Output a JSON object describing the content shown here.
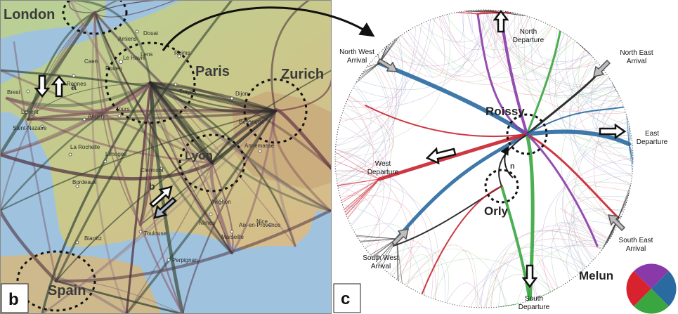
{
  "panel_b": {
    "letter": "b",
    "regions": {
      "london": "London",
      "paris": "Paris",
      "zurich": "Zurich",
      "lyon": "Lyon",
      "spain": "Spain"
    },
    "markers": {
      "a": "a",
      "b": "b"
    },
    "cities": [
      "Le Havre",
      "Rennes",
      "Brest",
      "Lorient",
      "Saint-Nazaire",
      "Angers",
      "Tours",
      "La Rochelle",
      "Limoges",
      "Clermont",
      "Bordeaux",
      "Toulouse",
      "Biarritz",
      "Nîmes",
      "Avignon",
      "Nice",
      "Marseille",
      "Aix-en-Provence",
      "Perpignan",
      "Dijon",
      "Annemasse",
      "Besançon",
      "Troyes",
      "Reims",
      "Lens",
      "Douai",
      "Amiens",
      "Rouen",
      "Caen"
    ]
  },
  "panel_c": {
    "letter": "c",
    "hubs": {
      "roissy": "Roissy",
      "orly": "Orly",
      "melun": "Melun"
    },
    "marker_n": "n",
    "labels": {
      "north_departure": [
        "North",
        "Departure"
      ],
      "north_west_arrival": [
        "North West",
        "Arrival"
      ],
      "north_east_arrival": [
        "North East",
        "Arrival"
      ],
      "east_departure": [
        "East",
        "Departure"
      ],
      "west_departure": [
        "West",
        "Departure"
      ],
      "south_west_arrival": [
        "South West",
        "Arrival"
      ],
      "south_east_arrival": [
        "South East",
        "Arrival"
      ],
      "south_departure": [
        "South",
        "Departure"
      ]
    }
  },
  "colors": {
    "sea": "#9fc3df",
    "land_green": "#a9c98a",
    "land_tan": "#d8c48f",
    "blue": "#2a6aa0",
    "red": "#c8222e",
    "green": "#3aa640",
    "purple": "#8a3aa8",
    "black": "#1a1a1a"
  }
}
